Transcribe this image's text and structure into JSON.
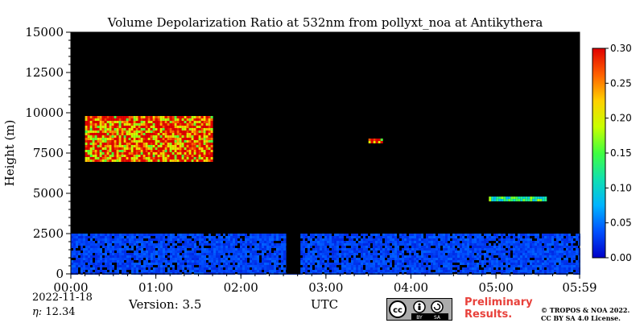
{
  "chart_data": {
    "type": "heatmap",
    "title": "Volume Depolarization Ratio at 532nm from pollyxt_noa at Antikythera",
    "xlabel": "UTC",
    "ylabel": "Height (m)",
    "x_ticks": [
      "00:00",
      "01:00",
      "02:00",
      "03:00",
      "04:00",
      "04:00",
      "05:00",
      "05:59"
    ],
    "x_range": [
      "00:00",
      "05:59"
    ],
    "y_ticks": [
      0,
      2500,
      5000,
      7500,
      10000,
      12500,
      15000
    ],
    "ylim": [
      0,
      15000
    ],
    "colorbar": {
      "ticks": [
        "0.00",
        "0.05",
        "0.10",
        "0.15",
        "0.20",
        "0.25",
        "0.30"
      ],
      "range": [
        0,
        0.3
      ],
      "colormap": [
        "#0000c8",
        "#0050ff",
        "#00b4ff",
        "#10e0b0",
        "#40ff40",
        "#c8ff00",
        "#ffd000",
        "#ff6000",
        "#e00000"
      ]
    },
    "features": [
      {
        "kind": "boundary-layer",
        "time_start": "00:00",
        "time_end": "05:59",
        "height_bottom": 0,
        "height_top": 2500,
        "value": 0.03
      },
      {
        "kind": "cloud",
        "time_start": "00:10",
        "time_end": "01:40",
        "height_bottom": 7000,
        "height_top": 9800,
        "value": 0.25
      },
      {
        "kind": "cloud",
        "time_start": "03:30",
        "time_end": "03:40",
        "height_bottom": 8200,
        "height_top": 8400,
        "value": 0.25
      },
      {
        "kind": "layer",
        "time_start": "04:55",
        "time_end": "05:35",
        "height_bottom": 4500,
        "height_top": 4800,
        "value": 0.12
      },
      {
        "kind": "no-data",
        "time_start": "02:32",
        "time_end": "02:42",
        "height_bottom": 0,
        "height_top": 15000
      }
    ]
  },
  "footer": {
    "date": "2022-11-18",
    "eta_label": "η:",
    "eta_value": "12.34",
    "version": "Version: 3.5",
    "preliminary_line1": "Preliminary",
    "preliminary_line2": "Results.",
    "copyright_line1": "© TROPOS & NOA 2022.",
    "copyright_line2": "CC BY SA 4.0 License.",
    "license_icon": "cc-by-sa-icon",
    "license_by": "BY",
    "license_sa": "SA"
  }
}
